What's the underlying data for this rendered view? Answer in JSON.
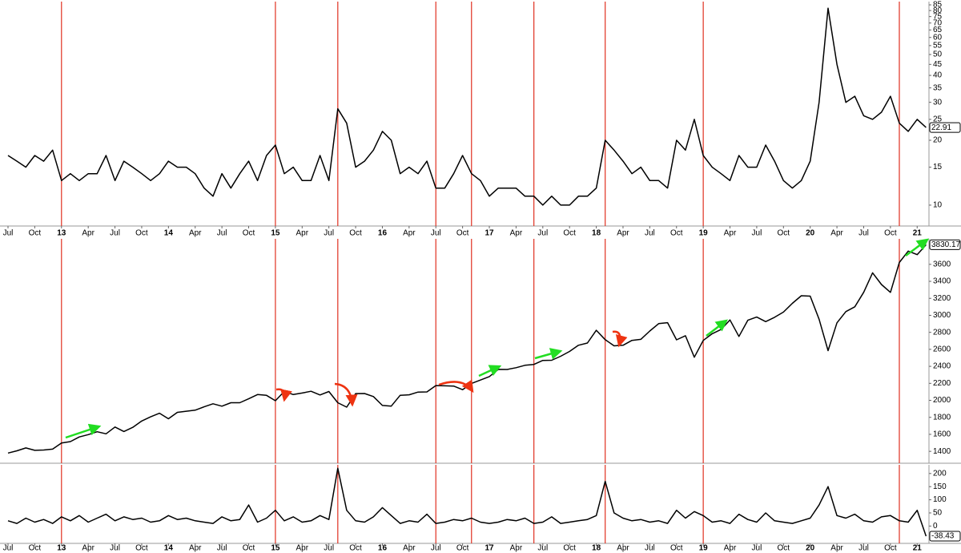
{
  "chart_data": [
    {
      "type": "line",
      "log_scale": true,
      "color": "#000000",
      "x": [
        "2012-07",
        "2012-08",
        "2012-09",
        "2012-10",
        "2012-11",
        "2012-12",
        "2013-01",
        "2013-02",
        "2013-03",
        "2013-04",
        "2013-05",
        "2013-06",
        "2013-07",
        "2013-08",
        "2013-09",
        "2013-10",
        "2013-11",
        "2013-12",
        "2014-01",
        "2014-02",
        "2014-03",
        "2014-04",
        "2014-05",
        "2014-06",
        "2014-07",
        "2014-08",
        "2014-09",
        "2014-10",
        "2014-11",
        "2014-12",
        "2015-01",
        "2015-02",
        "2015-03",
        "2015-04",
        "2015-05",
        "2015-06",
        "2015-07",
        "2015-08",
        "2015-09",
        "2015-10",
        "2015-11",
        "2015-12",
        "2016-01",
        "2016-02",
        "2016-03",
        "2016-04",
        "2016-05",
        "2016-06",
        "2016-07",
        "2016-08",
        "2016-09",
        "2016-10",
        "2016-11",
        "2016-12",
        "2017-01",
        "2017-02",
        "2017-03",
        "2017-04",
        "2017-05",
        "2017-06",
        "2017-07",
        "2017-08",
        "2017-09",
        "2017-10",
        "2017-11",
        "2017-12",
        "2018-01",
        "2018-02",
        "2018-03",
        "2018-04",
        "2018-05",
        "2018-06",
        "2018-07",
        "2018-08",
        "2018-09",
        "2018-10",
        "2018-11",
        "2018-12",
        "2019-01",
        "2019-02",
        "2019-03",
        "2019-04",
        "2019-05",
        "2019-06",
        "2019-07",
        "2019-08",
        "2019-09",
        "2019-10",
        "2019-11",
        "2019-12",
        "2020-01",
        "2020-02",
        "2020-03",
        "2020-04",
        "2020-05",
        "2020-06",
        "2020-07",
        "2020-08",
        "2020-09",
        "2020-10",
        "2020-11",
        "2020-12",
        "2021-01",
        "2021-02"
      ],
      "values": [
        17,
        16,
        15,
        17,
        16,
        18,
        13,
        14,
        13,
        14,
        14,
        17,
        13,
        16,
        15,
        14,
        13,
        14,
        16,
        15,
        15,
        14,
        12,
        11,
        14,
        12,
        14,
        16,
        13,
        17,
        19,
        14,
        15,
        13,
        13,
        17,
        13,
        28,
        24,
        15,
        16,
        18,
        22,
        20,
        14,
        15,
        14,
        16,
        12,
        12,
        14,
        17,
        14,
        13,
        11,
        12,
        12,
        12,
        11,
        11,
        10,
        11,
        10,
        10,
        11,
        11,
        12,
        20,
        18,
        16,
        14,
        15,
        13,
        13,
        12,
        20,
        18,
        25,
        17,
        15,
        14,
        13,
        17,
        15,
        15,
        19,
        16,
        13,
        12,
        13,
        16,
        30,
        82,
        45,
        30,
        32,
        26,
        25,
        27,
        32,
        24,
        22,
        25,
        22.91
      ],
      "ylim": [
        8,
        88
      ],
      "yticks": [
        10,
        15,
        20,
        25,
        30,
        35,
        40,
        45,
        50,
        55,
        60,
        65,
        70,
        75,
        80,
        85
      ],
      "xticks": [
        {
          "value": "2012-07",
          "label": "Jul"
        },
        {
          "value": "2012-10",
          "label": "Oct"
        },
        {
          "value": "2013-01",
          "label": "13"
        },
        {
          "value": "2013-04",
          "label": "Apr"
        },
        {
          "value": "2013-07",
          "label": "Jul"
        },
        {
          "value": "2013-10",
          "label": "Oct"
        },
        {
          "value": "2014-01",
          "label": "14"
        },
        {
          "value": "2014-04",
          "label": "Apr"
        },
        {
          "value": "2014-07",
          "label": "Jul"
        },
        {
          "value": "2014-10",
          "label": "Oct"
        },
        {
          "value": "2015-01",
          "label": "15"
        },
        {
          "value": "2015-04",
          "label": "Apr"
        },
        {
          "value": "2015-07",
          "label": "Jul"
        },
        {
          "value": "2015-10",
          "label": "Oct"
        },
        {
          "value": "2016-01",
          "label": "16"
        },
        {
          "value": "2016-04",
          "label": "Apr"
        },
        {
          "value": "2016-07",
          "label": "Jul"
        },
        {
          "value": "2016-10",
          "label": "Oct"
        },
        {
          "value": "2017-01",
          "label": "17"
        },
        {
          "value": "2017-04",
          "label": "Apr"
        },
        {
          "value": "2017-07",
          "label": "Jul"
        },
        {
          "value": "2017-10",
          "label": "Oct"
        },
        {
          "value": "2018-01",
          "label": "18"
        },
        {
          "value": "2018-04",
          "label": "Apr"
        },
        {
          "value": "2018-07",
          "label": "Jul"
        },
        {
          "value": "2018-10",
          "label": "Oct"
        },
        {
          "value": "2019-01",
          "label": "19"
        },
        {
          "value": "2019-04",
          "label": "Apr"
        },
        {
          "value": "2019-07",
          "label": "Jul"
        },
        {
          "value": "2019-10",
          "label": "Oct"
        },
        {
          "value": "2020-01",
          "label": "20"
        },
        {
          "value": "2020-04",
          "label": "Apr"
        },
        {
          "value": "2020-07",
          "label": "Jul"
        },
        {
          "value": "2020-10",
          "label": "Oct"
        },
        {
          "value": "2021-01",
          "label": "21"
        }
      ],
      "vlines": [
        "2013-01",
        "2015-01",
        "2015-08",
        "2016-07",
        "2016-11",
        "2017-06",
        "2018-02",
        "2019-01",
        "2020-11"
      ],
      "vline_color": "#e03020"
    },
    {
      "type": "line",
      "log_scale": false,
      "color": "#000000",
      "x": [
        "2012-07",
        "2012-08",
        "2012-09",
        "2012-10",
        "2012-11",
        "2012-12",
        "2013-01",
        "2013-02",
        "2013-03",
        "2013-04",
        "2013-05",
        "2013-06",
        "2013-07",
        "2013-08",
        "2013-09",
        "2013-10",
        "2013-11",
        "2013-12",
        "2014-01",
        "2014-02",
        "2014-03",
        "2014-04",
        "2014-05",
        "2014-06",
        "2014-07",
        "2014-08",
        "2014-09",
        "2014-10",
        "2014-11",
        "2014-12",
        "2015-01",
        "2015-02",
        "2015-03",
        "2015-04",
        "2015-05",
        "2015-06",
        "2015-07",
        "2015-08",
        "2015-09",
        "2015-10",
        "2015-11",
        "2015-12",
        "2016-01",
        "2016-02",
        "2016-03",
        "2016-04",
        "2016-05",
        "2016-06",
        "2016-07",
        "2016-08",
        "2016-09",
        "2016-10",
        "2016-11",
        "2016-12",
        "2017-01",
        "2017-02",
        "2017-03",
        "2017-04",
        "2017-05",
        "2017-06",
        "2017-07",
        "2017-08",
        "2017-09",
        "2017-10",
        "2017-11",
        "2017-12",
        "2018-01",
        "2018-02",
        "2018-03",
        "2018-04",
        "2018-05",
        "2018-06",
        "2018-07",
        "2018-08",
        "2018-09",
        "2018-10",
        "2018-11",
        "2018-12",
        "2019-01",
        "2019-02",
        "2019-03",
        "2019-04",
        "2019-05",
        "2019-06",
        "2019-07",
        "2019-08",
        "2019-09",
        "2019-10",
        "2019-11",
        "2019-12",
        "2020-01",
        "2020-02",
        "2020-03",
        "2020-04",
        "2020-05",
        "2020-06",
        "2020-07",
        "2020-08",
        "2020-09",
        "2020-10",
        "2020-11",
        "2020-12",
        "2021-01",
        "2021-02"
      ],
      "values": [
        1380,
        1406,
        1440,
        1412,
        1416,
        1426,
        1498,
        1515,
        1569,
        1597,
        1631,
        1606,
        1686,
        1633,
        1682,
        1757,
        1806,
        1848,
        1783,
        1859,
        1872,
        1884,
        1924,
        1960,
        1931,
        1972,
        1972,
        2018,
        2068,
        2059,
        1995,
        2105,
        2068,
        2086,
        2107,
        2063,
        2104,
        1972,
        1920,
        2079,
        2080,
        2044,
        1940,
        1932,
        2060,
        2065,
        2097,
        2099,
        2174,
        2171,
        2168,
        2126,
        2199,
        2239,
        2279,
        2364,
        2363,
        2384,
        2412,
        2423,
        2470,
        2472,
        2519,
        2575,
        2648,
        2674,
        2824,
        2714,
        2641,
        2648,
        2705,
        2718,
        2816,
        2902,
        2914,
        2712,
        2760,
        2507,
        2704,
        2784,
        2834,
        2946,
        2752,
        2942,
        2980,
        2926,
        2977,
        3038,
        3141,
        3231,
        3226,
        2954,
        2585,
        2912,
        3044,
        3100,
        3271,
        3500,
        3363,
        3270,
        3622,
        3756,
        3714,
        3830.17
      ],
      "ylim": [
        1260,
        3900
      ],
      "yticks": [
        1400,
        1600,
        1800,
        2000,
        2200,
        2400,
        2600,
        2800,
        3000,
        3200,
        3400,
        3600
      ],
      "vlines": [
        "2013-01",
        "2015-01",
        "2015-08",
        "2016-07",
        "2016-11",
        "2017-06",
        "2018-02",
        "2019-01",
        "2020-11"
      ],
      "vline_color": "#e03020"
    },
    {
      "type": "line",
      "log_scale": false,
      "color": "#000000",
      "x": [
        "2012-07",
        "2012-08",
        "2012-09",
        "2012-10",
        "2012-11",
        "2012-12",
        "2013-01",
        "2013-02",
        "2013-03",
        "2013-04",
        "2013-05",
        "2013-06",
        "2013-07",
        "2013-08",
        "2013-09",
        "2013-10",
        "2013-11",
        "2013-12",
        "2014-01",
        "2014-02",
        "2014-03",
        "2014-04",
        "2014-05",
        "2014-06",
        "2014-07",
        "2014-08",
        "2014-09",
        "2014-10",
        "2014-11",
        "2014-12",
        "2015-01",
        "2015-02",
        "2015-03",
        "2015-04",
        "2015-05",
        "2015-06",
        "2015-07",
        "2015-08",
        "2015-09",
        "2015-10",
        "2015-11",
        "2015-12",
        "2016-01",
        "2016-02",
        "2016-03",
        "2016-04",
        "2016-05",
        "2016-06",
        "2016-07",
        "2016-08",
        "2016-09",
        "2016-10",
        "2016-11",
        "2016-12",
        "2017-01",
        "2017-02",
        "2017-03",
        "2017-04",
        "2017-05",
        "2017-06",
        "2017-07",
        "2017-08",
        "2017-09",
        "2017-10",
        "2017-11",
        "2017-12",
        "2018-01",
        "2018-02",
        "2018-03",
        "2018-04",
        "2018-05",
        "2018-06",
        "2018-07",
        "2018-08",
        "2018-09",
        "2018-10",
        "2018-11",
        "2018-12",
        "2019-01",
        "2019-02",
        "2019-03",
        "2019-04",
        "2019-05",
        "2019-06",
        "2019-07",
        "2019-08",
        "2019-09",
        "2019-10",
        "2019-11",
        "2019-12",
        "2020-01",
        "2020-02",
        "2020-03",
        "2020-04",
        "2020-05",
        "2020-06",
        "2020-07",
        "2020-08",
        "2020-09",
        "2020-10",
        "2020-11",
        "2020-12",
        "2021-01",
        "2021-02"
      ],
      "values": [
        20,
        10,
        30,
        15,
        25,
        10,
        35,
        20,
        40,
        15,
        30,
        45,
        20,
        35,
        25,
        30,
        15,
        20,
        40,
        25,
        30,
        20,
        15,
        10,
        35,
        20,
        25,
        80,
        15,
        30,
        60,
        20,
        35,
        15,
        20,
        40,
        25,
        220,
        60,
        20,
        15,
        35,
        70,
        40,
        10,
        20,
        15,
        45,
        10,
        15,
        25,
        20,
        30,
        15,
        10,
        15,
        25,
        20,
        30,
        10,
        15,
        35,
        10,
        15,
        20,
        25,
        40,
        170,
        50,
        30,
        20,
        25,
        15,
        20,
        10,
        60,
        30,
        55,
        40,
        15,
        20,
        10,
        45,
        25,
        15,
        50,
        20,
        15,
        10,
        20,
        30,
        80,
        150,
        40,
        30,
        45,
        20,
        15,
        35,
        40,
        20,
        15,
        60,
        -38.43
      ],
      "ylim": [
        -66,
        233
      ],
      "yticks": [
        0,
        50,
        100,
        150,
        200
      ],
      "xticks": [
        {
          "value": "2012-07",
          "label": "Jul"
        },
        {
          "value": "2012-10",
          "label": "Oct"
        },
        {
          "value": "2013-01",
          "label": "13"
        },
        {
          "value": "2013-04",
          "label": "Apr"
        },
        {
          "value": "2013-07",
          "label": "Jul"
        },
        {
          "value": "2013-10",
          "label": "Oct"
        },
        {
          "value": "2014-01",
          "label": "14"
        },
        {
          "value": "2014-04",
          "label": "Apr"
        },
        {
          "value": "2014-07",
          "label": "Jul"
        },
        {
          "value": "2014-10",
          "label": "Oct"
        },
        {
          "value": "2015-01",
          "label": "15"
        },
        {
          "value": "2015-04",
          "label": "Apr"
        },
        {
          "value": "2015-07",
          "label": "Jul"
        },
        {
          "value": "2015-10",
          "label": "Oct"
        },
        {
          "value": "2016-01",
          "label": "16"
        },
        {
          "value": "2016-04",
          "label": "Apr"
        },
        {
          "value": "2016-07",
          "label": "Jul"
        },
        {
          "value": "2016-10",
          "label": "Oct"
        },
        {
          "value": "2017-01",
          "label": "17"
        },
        {
          "value": "2017-04",
          "label": "Apr"
        },
        {
          "value": "2017-07",
          "label": "Jul"
        },
        {
          "value": "2017-10",
          "label": "Oct"
        },
        {
          "value": "2018-01",
          "label": "18"
        },
        {
          "value": "2018-04",
          "label": "Apr"
        },
        {
          "value": "2018-07",
          "label": "Jul"
        },
        {
          "value": "2018-10",
          "label": "Oct"
        },
        {
          "value": "2019-01",
          "label": "19"
        },
        {
          "value": "2019-04",
          "label": "Apr"
        },
        {
          "value": "2019-07",
          "label": "Jul"
        },
        {
          "value": "2019-10",
          "label": "Oct"
        },
        {
          "value": "2020-01",
          "label": "20"
        },
        {
          "value": "2020-04",
          "label": "Apr"
        },
        {
          "value": "2020-07",
          "label": "Jul"
        },
        {
          "value": "2020-10",
          "label": "Oct"
        },
        {
          "value": "2021-01",
          "label": "21"
        }
      ],
      "vlines": [
        "2013-01",
        "2015-01",
        "2015-08",
        "2016-07",
        "2016-11",
        "2017-06",
        "2018-02",
        "2019-01",
        "2020-11"
      ],
      "vline_color": "#e03020"
    }
  ]
}
